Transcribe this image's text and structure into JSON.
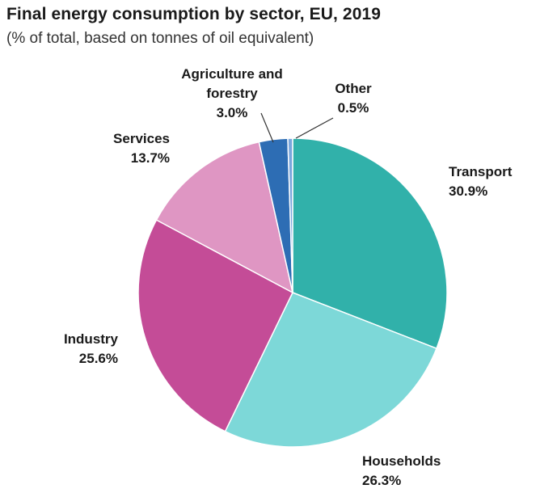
{
  "chart_data": {
    "type": "pie",
    "title": "Final energy consumption by sector, EU, 2019",
    "subtitle": "(% of total, based on tonnes of oil equivalent)",
    "slices": [
      {
        "name": "Transport",
        "value": 30.9,
        "label_lines": [
          "Transport",
          "30.9%"
        ],
        "color": "#31b1aa"
      },
      {
        "name": "Households",
        "value": 26.3,
        "label_lines": [
          "Households",
          "26.3%"
        ],
        "color": "#7dd8d8"
      },
      {
        "name": "Industry",
        "value": 25.6,
        "label_lines": [
          "Industry",
          "25.6%"
        ],
        "color": "#c44c97"
      },
      {
        "name": "Services",
        "value": 13.7,
        "label_lines": [
          "Services",
          "13.7%"
        ],
        "color": "#df96c3"
      },
      {
        "name": "Agriculture and forestry",
        "value": 3.0,
        "label_lines": [
          "Agriculture and",
          "forestry",
          "3.0%"
        ],
        "color": "#2d6db4"
      },
      {
        "name": "Other",
        "value": 0.5,
        "label_lines": [
          "Other",
          "0.5%"
        ],
        "color": "#7aa6dc"
      }
    ]
  }
}
